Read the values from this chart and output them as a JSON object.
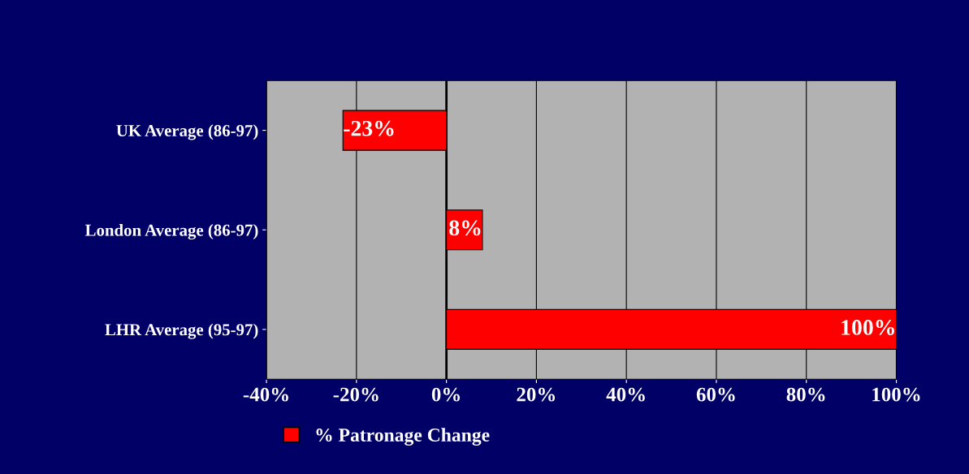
{
  "chart_data": {
    "type": "bar",
    "orientation": "horizontal",
    "categories": [
      "UK Average (86-97)",
      "London Average (86-97)",
      "LHR Average (95-97)"
    ],
    "series": [
      {
        "name": "% Patronage Change",
        "color": "#ff0000",
        "values": [
          -23,
          8,
          100
        ],
        "value_labels": [
          "-23%",
          "8%",
          "100%"
        ]
      }
    ],
    "xlim": [
      -40,
      100
    ],
    "xticks": [
      {
        "value": -40,
        "label": "-40%"
      },
      {
        "value": -20,
        "label": "-20%"
      },
      {
        "value": 0,
        "label": "0%"
      },
      {
        "value": 20,
        "label": "20%"
      },
      {
        "value": 40,
        "label": "40%"
      },
      {
        "value": 60,
        "label": "60%"
      },
      {
        "value": 80,
        "label": "80%"
      },
      {
        "value": 100,
        "label": "100%"
      }
    ],
    "grid": "x",
    "legend": "bottom"
  }
}
